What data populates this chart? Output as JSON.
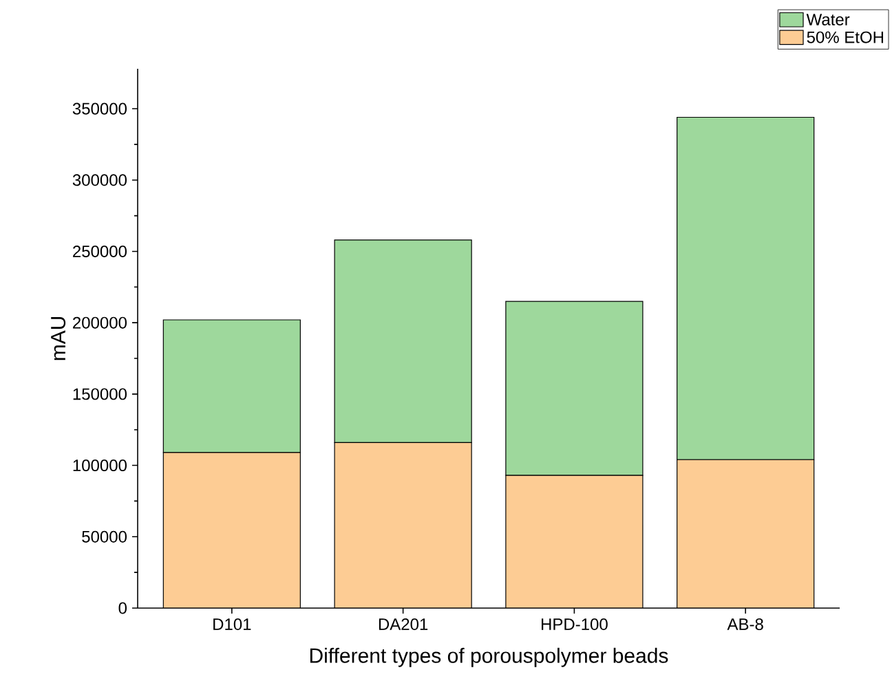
{
  "chart_data": {
    "type": "bar",
    "stacked": true,
    "xlabel": "Different types of porouspolymer beads",
    "ylabel": "mAU",
    "categories": [
      "D101",
      "DA201",
      "HPD-100",
      "AB-8"
    ],
    "series": [
      {
        "name": "50% EtOH",
        "color": "#fdcc94",
        "values": [
          109000,
          116000,
          93000,
          104000
        ]
      },
      {
        "name": "Water",
        "color": "#9ed89c",
        "values": [
          93000,
          142000,
          122000,
          240000
        ]
      }
    ],
    "ylim": [
      0,
      378000
    ],
    "yticks": [
      0,
      50000,
      100000,
      150000,
      200000,
      250000,
      300000,
      350000
    ],
    "legend": "top right",
    "grid": false
  }
}
